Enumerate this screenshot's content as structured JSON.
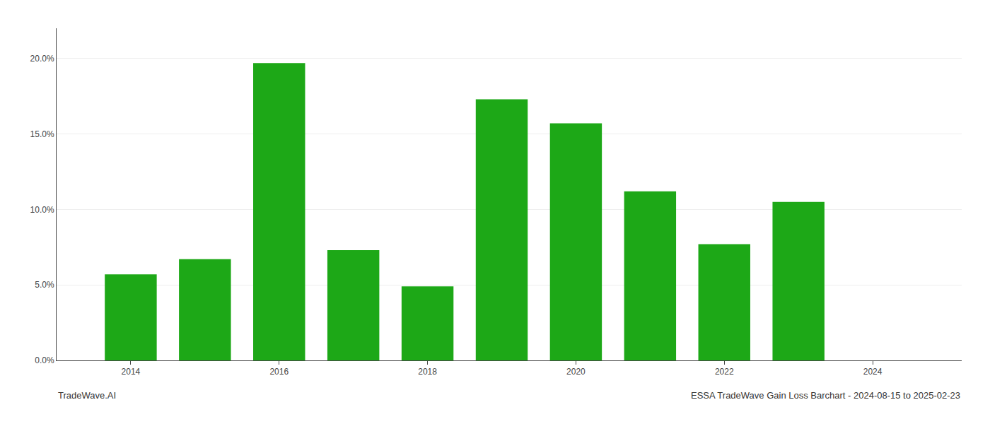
{
  "chart_data": {
    "type": "bar",
    "x": [
      2014,
      2015,
      2016,
      2017,
      2018,
      2019,
      2020,
      2021,
      2022,
      2023
    ],
    "values": [
      0.057,
      0.067,
      0.197,
      0.073,
      0.049,
      0.173,
      0.157,
      0.112,
      0.077,
      0.105
    ],
    "color": "#1da817",
    "xlim": [
      2013.0,
      2025.2
    ],
    "xticks": [
      2014,
      2016,
      2018,
      2020,
      2022,
      2024
    ],
    "ylim": [
      0,
      0.22
    ],
    "yticks": [
      {
        "value": 0.0,
        "label": "0.0%"
      },
      {
        "value": 0.05,
        "label": "5.0%"
      },
      {
        "value": 0.1,
        "label": "10.0%"
      },
      {
        "value": 0.15,
        "label": "15.0%"
      },
      {
        "value": 0.2,
        "label": "20.0%"
      }
    ],
    "grid": true,
    "annotations": [
      "TradeWave.AI",
      "ESSA TradeWave Gain Loss Barchart - 2024-08-15 to 2025-02-23"
    ]
  }
}
